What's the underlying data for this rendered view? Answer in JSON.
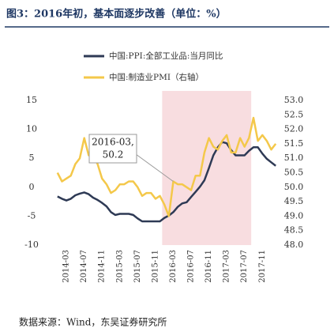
{
  "chart_data": {
    "type": "line",
    "title": "图3：2016年初，基本面逐步改善（单位：%）",
    "source": "数据来源：Wind，东吴证券研究所",
    "categories": [
      null,
      null,
      "2014-03",
      null,
      null,
      null,
      "2014-07",
      null,
      null,
      null,
      "2014-11",
      null,
      null,
      null,
      "2015-03",
      null,
      null,
      null,
      "2015-07",
      null,
      null,
      null,
      "2015-11",
      null,
      null,
      null,
      "2016-03",
      null,
      null,
      null,
      "2016-07",
      null,
      null,
      null,
      "2016-11",
      null,
      null,
      null,
      "2017-03",
      null,
      null,
      null,
      "2017-07",
      null,
      null,
      null,
      "2017-11",
      null,
      null,
      null
    ],
    "series": [
      {
        "name": "中国:PPI:全部工业品:当月同比",
        "color": "#2e3a55",
        "values": [
          -1.6,
          -2.0,
          -2.3,
          -2.0,
          -1.4,
          -1.1,
          -0.9,
          -1.2,
          -1.8,
          -2.2,
          -2.7,
          -3.3,
          -4.3,
          -4.8,
          -4.6,
          -4.6,
          -4.6,
          -4.8,
          -5.4,
          -5.9,
          -5.9,
          -5.9,
          -5.9,
          -5.9,
          -5.3,
          -4.9,
          -4.3,
          -3.4,
          -2.8,
          -2.6,
          -1.7,
          -0.8,
          0.1,
          1.2,
          3.3,
          5.5,
          6.9,
          7.8,
          7.6,
          6.4,
          5.5,
          5.5,
          5.5,
          6.3,
          6.9,
          6.9,
          5.8,
          4.9,
          4.3,
          3.7
        ]
      },
      {
        "name": "中国:制造业PMI（右轴）",
        "color": "#f4c84a",
        "axis": "y2",
        "values": [
          50.5,
          50.2,
          50.3,
          50.4,
          50.8,
          51.0,
          51.7,
          51.1,
          51.1,
          50.8,
          50.3,
          50.1,
          49.8,
          49.9,
          50.1,
          50.1,
          50.2,
          50.2,
          50.0,
          49.7,
          49.8,
          49.8,
          49.6,
          49.7,
          49.4,
          49.0,
          50.2,
          50.1,
          50.1,
          50.0,
          49.9,
          50.4,
          50.4,
          51.2,
          51.7,
          51.4,
          51.3,
          51.6,
          51.8,
          51.2,
          51.2,
          51.7,
          51.4,
          51.7,
          52.4,
          51.6,
          51.8,
          51.6,
          51.3,
          51.5
        ]
      }
    ],
    "ylim": [
      -10,
      15
    ],
    "yticks": [
      -10,
      -5,
      0,
      5,
      10,
      15
    ],
    "y2lim": [
      48,
      53
    ],
    "y2ticks": [
      {
        "value": 48,
        "label": "48.0"
      },
      48.5,
      {
        "value": 49,
        "label": "49.0"
      },
      49.5,
      {
        "value": 50,
        "label": "50.0"
      },
      50.5,
      {
        "value": 51,
        "label": "51.0"
      },
      51.5,
      {
        "value": 52,
        "label": "52.0"
      },
      52.5,
      {
        "value": 53,
        "label": "53.0"
      }
    ],
    "annotation": [
      "2016-03,",
      "50.2"
    ]
  }
}
